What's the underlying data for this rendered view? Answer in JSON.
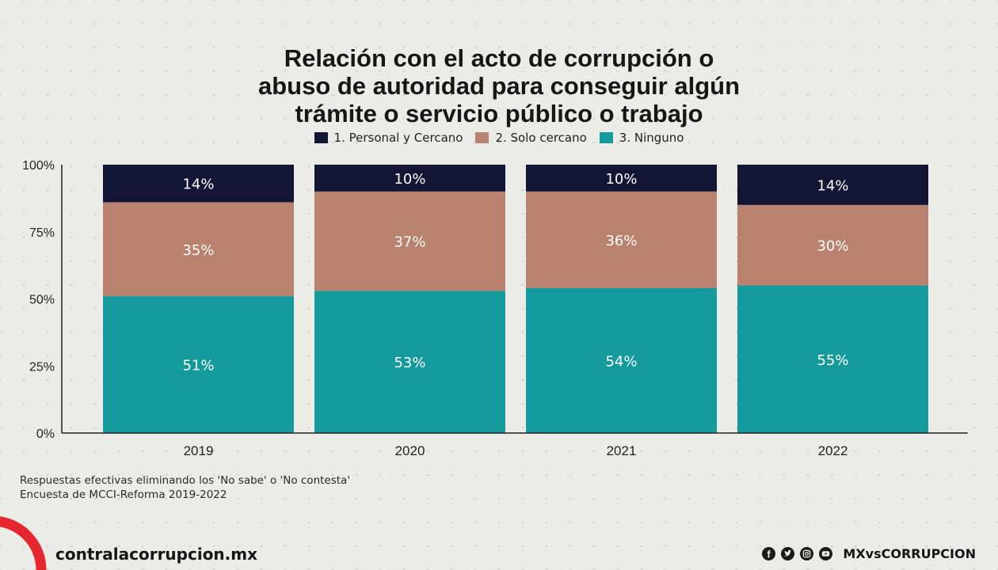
{
  "colors": {
    "personal": "#131535",
    "solo": "#b9826e",
    "ninguno": "#149a9c",
    "accent_red": "#e6262f",
    "axis": "#222222"
  },
  "chart_data": {
    "type": "bar",
    "stacked": true,
    "title": "Relación con el acto de corrupción o abuso de autoridad para conseguir algún trámite o servicio público o trabajo",
    "title_lines": [
      "Relación con el acto de corrupción o",
      "abuso de autoridad para conseguir algún",
      "trámite o servicio público o trabajo"
    ],
    "categories": [
      "2019",
      "2020",
      "2021",
      "2022"
    ],
    "series": [
      {
        "name": "3. Ninguno",
        "values": [
          51,
          53,
          54,
          55
        ],
        "labels": [
          "51%",
          "53%",
          "54%",
          "55%"
        ]
      },
      {
        "name": "2. Solo cercano",
        "values": [
          35,
          37,
          36,
          30
        ],
        "labels": [
          "35%",
          "37%",
          "36%",
          "30%"
        ]
      },
      {
        "name": "1. Personal y Cercano",
        "values": [
          14,
          10,
          10,
          14
        ],
        "labels": [
          "14%",
          "10%",
          "10%",
          "14%"
        ]
      }
    ],
    "legend": [
      "1. Personal y Cercano",
      "2. Solo cercano",
      "3. Ninguno"
    ],
    "legend_position": "top-center",
    "ylim": [
      0,
      100
    ],
    "yticks": [
      "0%",
      "25%",
      "50%",
      "75%",
      "100%"
    ],
    "grid": false
  },
  "notes": [
    "Respuestas efectivas eliminando los 'No sabe' o 'No contesta'",
    "Encuesta de MCCI-Reforma 2019-2022"
  ],
  "footer": {
    "site": "contralacorrupcion.mx",
    "handle": "MXvsCORRUPCION",
    "social_icons": [
      "facebook-icon",
      "twitter-icon",
      "instagram-icon",
      "youtube-icon"
    ]
  }
}
